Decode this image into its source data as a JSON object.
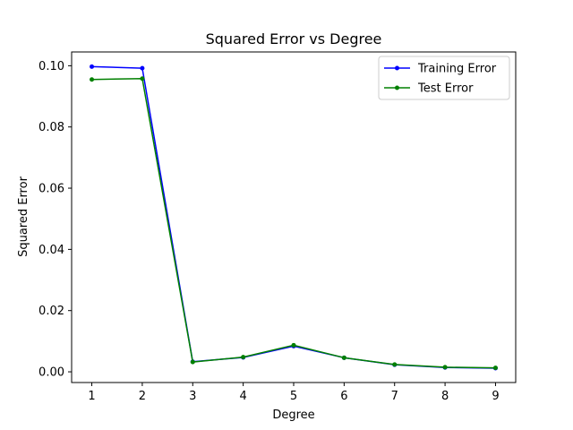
{
  "chart_data": {
    "type": "line",
    "title": "Squared Error vs Degree",
    "xlabel": "Degree",
    "ylabel": "Squared Error",
    "x": [
      1,
      2,
      3,
      4,
      5,
      6,
      7,
      8,
      9
    ],
    "xlim": [
      0.6,
      9.4
    ],
    "ylim": [
      -0.0035,
      0.1045
    ],
    "xticks": [
      "1",
      "2",
      "3",
      "4",
      "5",
      "6",
      "7",
      "8",
      "9"
    ],
    "yticks": [
      {
        "value": 0.0,
        "label": "0.00"
      },
      {
        "value": 0.02,
        "label": "0.02"
      },
      {
        "value": 0.04,
        "label": "0.04"
      },
      {
        "value": 0.06,
        "label": "0.06"
      },
      {
        "value": 0.08,
        "label": "0.08"
      },
      {
        "value": 0.1,
        "label": "0.10"
      }
    ],
    "grid": false,
    "legend": "top-right",
    "series": [
      {
        "name": "Training Error",
        "color": "#0000ff",
        "values": [
          0.0997,
          0.0992,
          0.0033,
          0.0047,
          0.0084,
          0.0046,
          0.0023,
          0.0014,
          0.0012
        ]
      },
      {
        "name": "Test Error",
        "color": "#008000",
        "values": [
          0.0955,
          0.0958,
          0.0032,
          0.0048,
          0.0087,
          0.0046,
          0.0024,
          0.0015,
          0.0013
        ]
      }
    ]
  }
}
